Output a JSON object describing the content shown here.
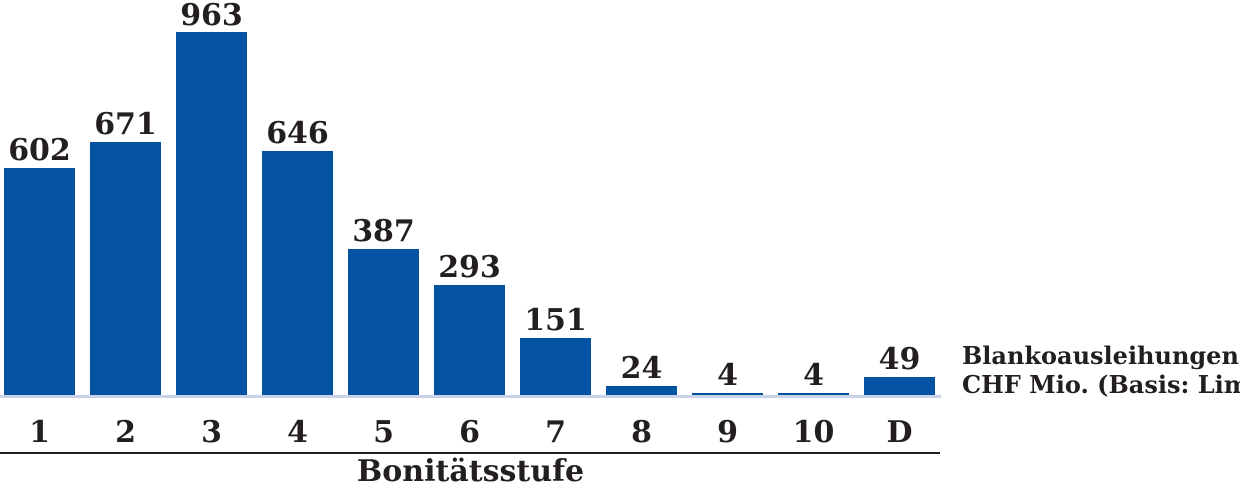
{
  "chart_data": {
    "type": "bar",
    "categories": [
      "1",
      "2",
      "3",
      "4",
      "5",
      "6",
      "7",
      "8",
      "9",
      "10",
      "D"
    ],
    "values": [
      602,
      671,
      963,
      646,
      387,
      293,
      151,
      24,
      4,
      4,
      49
    ],
    "title": "",
    "xlabel": "Bonitätsstufe",
    "ylabel": "",
    "ylim": [
      0,
      963
    ],
    "grid": false,
    "value_labels_shown": true,
    "legend_position": "right-of-last-bar",
    "legend_lines": [
      "Blankoausleihungen in",
      "CHF Mio. (Basis: Limite)"
    ],
    "series_name": "Blankoausleihungen in CHF Mio. (Basis: Limite)",
    "colors": {
      "bar": "#0453a2",
      "text": "#231f20",
      "baseline": "#c9d2e8",
      "axis_line": "#231f20",
      "background": "#ffffff"
    }
  }
}
